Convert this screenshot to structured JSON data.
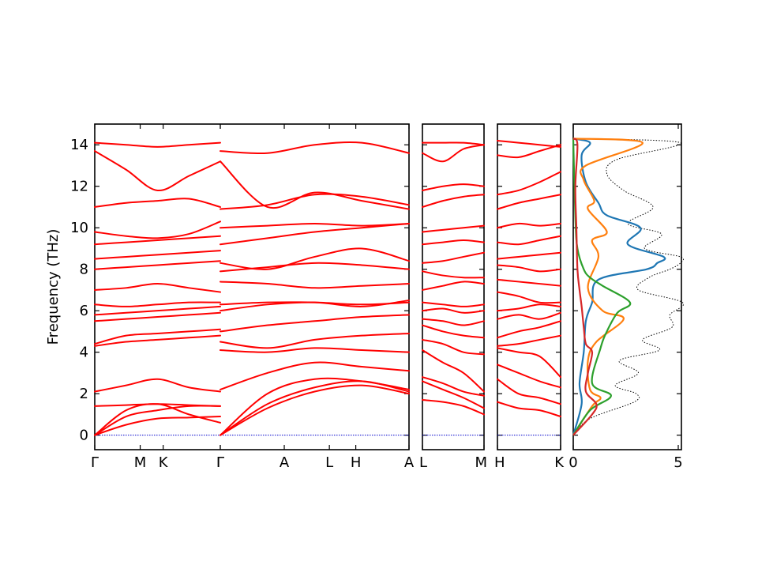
{
  "chart_data": {
    "type": "line",
    "ylabel": "Frequency (THz)",
    "ylim": [
      -0.7,
      15
    ],
    "yticks": [
      0,
      2,
      4,
      6,
      8,
      10,
      12,
      14
    ],
    "panels": [
      {
        "kind": "band",
        "segments": [
          {
            "labels": [
              "Γ",
              "M",
              "K",
              "Γ"
            ],
            "label_pos": [
              0,
              0.362,
              0.545,
              1
            ],
            "bands": [
              [
                0,
                0.9,
                1.2,
                1.4,
                1.4
              ],
              [
                0,
                0.5,
                0.8,
                0.85,
                0.9
              ],
              [
                0,
                1.2,
                1.5,
                1.0,
                0.6
              ],
              [
                1.4,
                1.45,
                1.5,
                1.45,
                1.4
              ],
              [
                2.1,
                2.4,
                2.7,
                2.3,
                2.1
              ],
              [
                4.3,
                4.5,
                4.6,
                4.7,
                4.8
              ],
              [
                4.4,
                4.8,
                4.9,
                5.0,
                5.1
              ],
              [
                5.5,
                5.6,
                5.7,
                5.8,
                5.9
              ],
              [
                5.8,
                5.9,
                6.0,
                6.1,
                6.2
              ],
              [
                6.3,
                6.2,
                6.3,
                6.4,
                6.4
              ],
              [
                7.0,
                7.1,
                7.3,
                7.1,
                6.9
              ],
              [
                8.0,
                8.1,
                8.2,
                8.3,
                8.4
              ],
              [
                8.5,
                8.6,
                8.7,
                8.8,
                8.9
              ],
              [
                9.2,
                9.3,
                9.4,
                9.5,
                9.6
              ],
              [
                9.8,
                9.6,
                9.5,
                9.7,
                10.3
              ],
              [
                11.0,
                11.2,
                11.3,
                11.4,
                11.0
              ],
              [
                13.7,
                12.8,
                11.8,
                12.5,
                13.2
              ],
              [
                14.1,
                14.0,
                13.9,
                14.0,
                14.1
              ]
            ]
          },
          {
            "labels": [
              "Γ",
              "A",
              "L",
              "H",
              "A"
            ],
            "label_pos": [
              0,
              0.339,
              0.578,
              0.718,
              1
            ],
            "bands": [
              [
                0,
                1.5,
                2.3,
                2.6,
                2.1
              ],
              [
                0,
                1.3,
                2.1,
                2.4,
                2.0
              ],
              [
                0,
                2.0,
                2.7,
                2.6,
                2.2
              ],
              [
                2.2,
                3.0,
                3.5,
                3.3,
                3.1
              ],
              [
                4.1,
                4.0,
                4.2,
                4.1,
                4.0
              ],
              [
                4.5,
                4.2,
                4.6,
                4.8,
                4.9
              ],
              [
                5.0,
                5.3,
                5.5,
                5.7,
                5.8
              ],
              [
                6.0,
                6.3,
                6.4,
                6.2,
                6.5
              ],
              [
                6.3,
                6.4,
                6.4,
                6.3,
                6.4
              ],
              [
                7.4,
                7.3,
                7.1,
                7.2,
                7.3
              ],
              [
                7.9,
                8.1,
                8.3,
                8.2,
                8.0
              ],
              [
                8.3,
                8.0,
                8.6,
                9.0,
                8.4
              ],
              [
                9.2,
                9.5,
                9.8,
                10.0,
                10.2
              ],
              [
                10.0,
                10.1,
                10.2,
                10.1,
                10.2
              ],
              [
                10.9,
                11.1,
                11.6,
                11.5,
                11.1
              ],
              [
                13.2,
                11.0,
                11.7,
                11.3,
                10.9
              ],
              [
                13.7,
                13.6,
                14.0,
                14.1,
                13.6
              ]
            ]
          }
        ]
      },
      {
        "kind": "band",
        "segments": [
          {
            "labels": [
              "L",
              "M"
            ],
            "label_pos": [
              0,
              1
            ],
            "bands": [
              [
                1.7,
                1.6,
                1.4,
                1.0
              ],
              [
                2.6,
                2.2,
                1.8,
                1.3
              ],
              [
                2.8,
                2.5,
                2.1,
                1.9
              ],
              [
                4.1,
                3.5,
                3.0,
                2.1
              ],
              [
                4.6,
                4.4,
                4.0,
                3.9
              ],
              [
                5.3,
                5.0,
                4.8,
                4.7
              ],
              [
                5.6,
                5.5,
                5.3,
                5.5
              ],
              [
                6.0,
                6.1,
                5.9,
                6.0
              ],
              [
                6.4,
                6.3,
                6.2,
                6.3
              ],
              [
                7.0,
                7.2,
                7.4,
                7.3
              ],
              [
                7.9,
                7.7,
                7.6,
                7.6
              ],
              [
                8.3,
                8.4,
                8.6,
                8.8
              ],
              [
                9.2,
                9.3,
                9.4,
                9.3
              ],
              [
                9.8,
                9.9,
                10.0,
                10.1
              ],
              [
                11.0,
                11.3,
                11.5,
                11.6
              ],
              [
                11.8,
                12.0,
                12.1,
                12.0
              ],
              [
                13.6,
                13.2,
                13.8,
                14.0
              ],
              [
                14.1,
                14.1,
                14.1,
                14.0
              ]
            ]
          }
        ]
      },
      {
        "kind": "band",
        "segments": [
          {
            "labels": [
              "H",
              "K"
            ],
            "label_pos": [
              0,
              1
            ],
            "bands": [
              [
                1.6,
                1.3,
                1.2,
                0.9
              ],
              [
                2.7,
                2.0,
                1.8,
                1.5
              ],
              [
                3.4,
                3.0,
                2.6,
                2.3
              ],
              [
                4.2,
                4.0,
                3.8,
                2.8
              ],
              [
                4.3,
                4.4,
                4.6,
                4.8
              ],
              [
                4.7,
                5.0,
                5.2,
                5.5
              ],
              [
                5.6,
                5.8,
                5.6,
                5.9
              ],
              [
                6.0,
                6.1,
                6.3,
                6.2
              ],
              [
                6.9,
                6.7,
                6.4,
                6.4
              ],
              [
                7.5,
                7.4,
                7.3,
                7.2
              ],
              [
                8.2,
                8.1,
                7.9,
                8.0
              ],
              [
                8.5,
                8.6,
                8.7,
                8.8
              ],
              [
                9.3,
                9.2,
                9.4,
                9.6
              ],
              [
                10.0,
                10.2,
                10.1,
                10.2
              ],
              [
                10.9,
                11.2,
                11.4,
                11.6
              ],
              [
                11.6,
                11.8,
                12.2,
                12.7
              ],
              [
                13.5,
                13.4,
                13.7,
                14.0
              ],
              [
                14.2,
                14.1,
                14.0,
                13.9
              ]
            ]
          }
        ]
      },
      {
        "kind": "dos",
        "xlim": [
          0,
          5
        ],
        "xticks": [
          0,
          5
        ],
        "series": [
          {
            "color": "#000000",
            "style": "dotted",
            "freq": [
              0,
              0.8,
              1.6,
              2.0,
              2.4,
              3.0,
              3.6,
              4.1,
              4.6,
              5.2,
              5.8,
              6.4,
              7.0,
              7.6,
              8.0,
              8.3,
              8.6,
              9.0,
              9.7,
              10.2,
              11.0,
              11.8,
              12.6,
              13.3,
              14.1,
              14.3
            ],
            "values": [
              0,
              0.8,
              2.9,
              3.0,
              2.0,
              3.1,
              2.2,
              4.1,
              3.3,
              4.7,
              4.6,
              5.2,
              3.1,
              3.6,
              4.6,
              5.1,
              5.1,
              3.4,
              4.2,
              2.6,
              3.8,
              2.4,
              1.6,
              2.1,
              5.1,
              0
            ]
          },
          {
            "color": "#1f77b4",
            "style": "solid",
            "freq": [
              0,
              1.5,
              2.5,
              4.0,
              5.5,
              6.4,
              7.5,
              8.0,
              8.3,
              8.6,
              9.2,
              10.0,
              10.6,
              11.2,
              12.2,
              13.5,
              14.1,
              14.3
            ],
            "values": [
              0,
              0.4,
              0.3,
              0.5,
              0.6,
              0.9,
              1.2,
              3.5,
              4.0,
              4.3,
              2.6,
              3.2,
              1.6,
              1.2,
              0.6,
              0.4,
              0.8,
              0
            ],
            "label": ""
          },
          {
            "color": "#ff7f0e",
            "style": "solid",
            "freq": [
              0,
              1.4,
              1.8,
              2.2,
              3.6,
              4.5,
              5.6,
              6.0,
              7.1,
              8.6,
              9.4,
              9.8,
              10.9,
              11.3,
              12.3,
              13.0,
              14.1,
              14.3
            ],
            "values": [
              0,
              0.9,
              1.3,
              0.8,
              0.7,
              1.1,
              2.4,
              1.4,
              0.7,
              1.2,
              0.9,
              1.6,
              0.7,
              1.0,
              0.5,
              0.6,
              3.3,
              0
            ],
            "label": ""
          },
          {
            "color": "#2ca02c",
            "style": "solid",
            "freq": [
              0,
              1.2,
              1.9,
              2.5,
              4.2,
              5.0,
              5.9,
              6.4,
              7.2,
              7.6,
              8.0,
              9.0,
              10.5,
              14.3
            ],
            "values": [
              0,
              0.8,
              1.8,
              0.9,
              1.3,
              1.6,
              2.1,
              2.7,
              1.4,
              0.8,
              0.5,
              0.2,
              0.1,
              0
            ],
            "label": ""
          },
          {
            "color": "#d62728",
            "style": "solid",
            "freq": [
              0,
              1.0,
              1.5,
              2.1,
              3.0,
              4.0,
              4.4,
              5.2,
              6.2,
              7.0,
              8.0,
              10.0,
              12.0,
              14.0,
              14.3
            ],
            "values": [
              0,
              0.9,
              1.1,
              0.6,
              0.7,
              0.9,
              0.6,
              0.5,
              0.4,
              0.3,
              0.2,
              0.15,
              0.1,
              0.2,
              0
            ],
            "label": ""
          }
        ]
      }
    ]
  },
  "colors": {
    "band": "#ff0000",
    "zero_line": "#0000cc"
  }
}
